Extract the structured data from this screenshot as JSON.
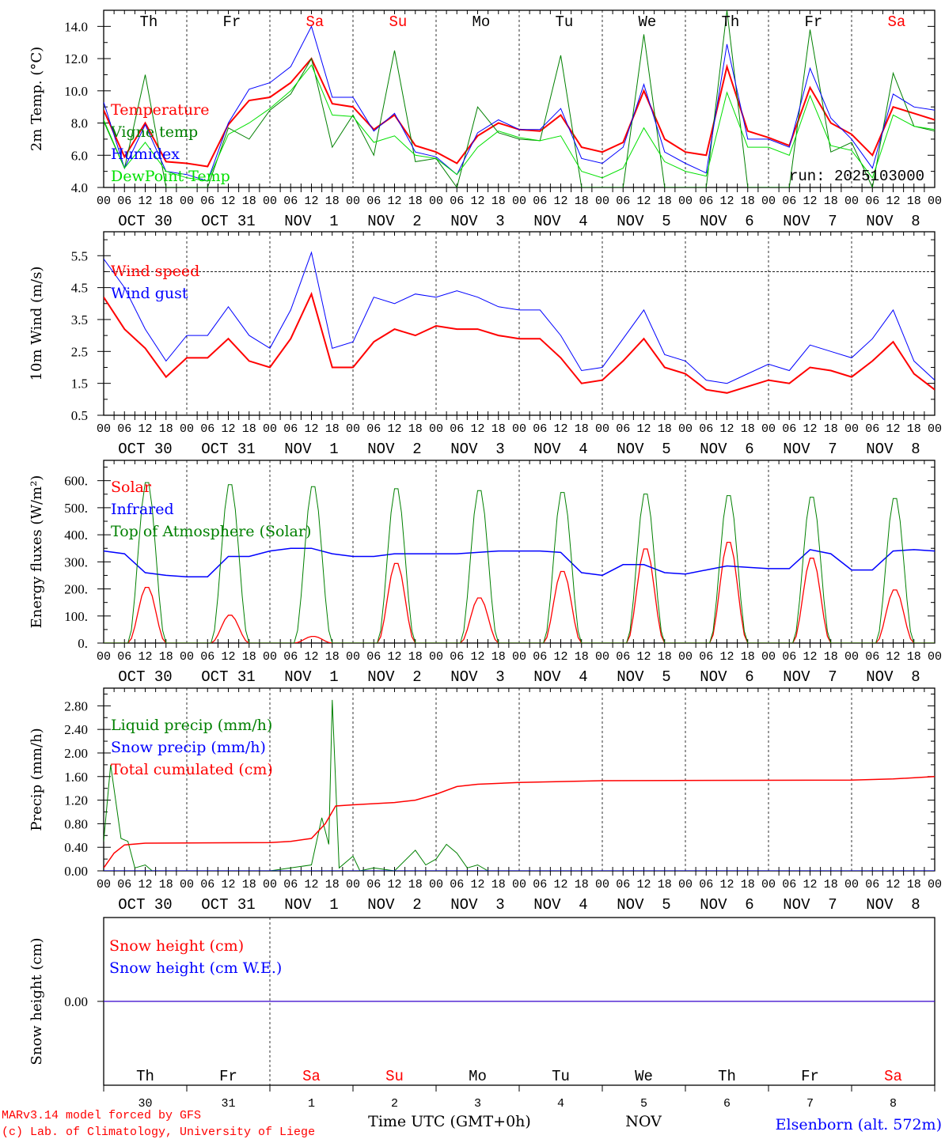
{
  "colors": {
    "red": "#ff0000",
    "blue": "#0000ff",
    "green": "#008000",
    "lightgreen": "#00e000",
    "black": "#000000"
  },
  "days": {
    "names": [
      "Th",
      "Fr",
      "Sa",
      "Su",
      "Mo",
      "Tu",
      "We",
      "Th",
      "Fr",
      "Sa"
    ],
    "weekend": [
      false,
      false,
      true,
      true,
      false,
      false,
      false,
      false,
      false,
      true
    ],
    "dates": [
      "OCT 30",
      "OCT 31",
      "NOV  1",
      "NOV  2",
      "NOV  3",
      "NOV  4",
      "NOV  5",
      "NOV  6",
      "NOV  7",
      "NOV  8"
    ],
    "numbers": [
      "30",
      "31",
      "1",
      "2",
      "3",
      "4",
      "5",
      "6",
      "7",
      "8"
    ]
  },
  "hour_labels": [
    "00",
    "06",
    "12",
    "18"
  ],
  "annotations": {
    "run": "run: 2025103000",
    "xlabel": "Time UTC (GMT+0h)",
    "month": "NOV",
    "station": "Elsenborn (alt. 572m)",
    "credit_model": "MARv3.14 model forced by GFS",
    "credit_lab": "(c) Lab. of Climatology, University of Liege"
  },
  "chart_data": [
    {
      "type": "line",
      "ylabel": "2m Temp. (°C)",
      "ylim": [
        4.0,
        15.0
      ],
      "ytick_values": [
        4,
        6,
        8,
        10,
        12,
        14
      ],
      "ytick_labels": [
        "4.0",
        "6.0",
        "8.0",
        "10.0",
        "12.0",
        "14.0"
      ],
      "minor_step": 1,
      "xlim_h": [
        0,
        240
      ],
      "series": [
        {
          "name": "Temperature",
          "color": "#ff0000",
          "width": 2,
          "step_h": 6,
          "values": [
            8.8,
            5.9,
            8.0,
            5.6,
            5.5,
            5.3,
            7.9,
            9.4,
            9.6,
            10.5,
            12.0,
            9.2,
            9.0,
            7.6,
            8.5,
            6.6,
            6.2,
            5.5,
            7.2,
            8.0,
            7.6,
            7.5,
            8.5,
            6.5,
            6.2,
            6.8,
            10.0,
            7.0,
            6.2,
            6.0,
            11.5,
            7.5,
            7.1,
            6.6,
            10.2,
            8.0,
            7.3,
            6.0,
            9.0,
            8.6,
            8.2
          ]
        },
        {
          "name": "Vigne temp",
          "color": "#008000",
          "width": 1,
          "step_h": 6,
          "values": [
            8.1,
            5.2,
            11.0,
            4.0,
            4.0,
            4.0,
            7.7,
            7.0,
            8.8,
            9.8,
            12.0,
            6.5,
            8.5,
            6.0,
            12.5,
            5.6,
            5.8,
            4.0,
            9.0,
            7.4,
            7.0,
            6.9,
            12.2,
            4.0,
            4.0,
            4.0,
            13.5,
            4.0,
            4.0,
            4.0,
            15.0,
            4.0,
            4.0,
            4.0,
            13.8,
            6.2,
            6.8,
            4.0,
            11.1,
            7.8,
            7.5
          ]
        },
        {
          "name": "Humidex",
          "color": "#0000ff",
          "width": 1,
          "step_h": 6,
          "values": [
            9.3,
            5.2,
            7.9,
            5.0,
            4.8,
            4.4,
            8.0,
            10.1,
            10.5,
            11.5,
            14.0,
            9.6,
            9.6,
            7.5,
            8.6,
            6.2,
            5.9,
            4.8,
            7.4,
            8.2,
            7.6,
            7.6,
            8.9,
            5.8,
            5.5,
            6.5,
            10.4,
            6.2,
            5.5,
            4.9,
            12.9,
            7.0,
            7.0,
            6.5,
            11.4,
            8.3,
            7.0,
            5.2,
            9.8,
            9.0,
            8.8
          ]
        },
        {
          "name": "DewPoint Temp",
          "color": "#00e000",
          "width": 1,
          "step_h": 6,
          "values": [
            8.2,
            5.2,
            6.8,
            5.0,
            4.6,
            4.4,
            7.3,
            8.0,
            8.9,
            10.0,
            11.6,
            8.5,
            8.4,
            6.8,
            7.2,
            6.0,
            5.8,
            4.8,
            6.5,
            7.5,
            7.1,
            6.9,
            7.2,
            5.0,
            4.6,
            5.2,
            7.7,
            5.6,
            5.0,
            4.7,
            9.9,
            6.5,
            6.5,
            6.0,
            9.7,
            6.6,
            6.3,
            4.6,
            8.5,
            7.8,
            7.6
          ]
        }
      ]
    },
    {
      "type": "line",
      "ylabel": "10m Wind (m/s)",
      "ylim": [
        0.5,
        6.25
      ],
      "ytick_values": [
        0.5,
        1.5,
        2.5,
        3.5,
        4.5,
        5.5
      ],
      "ytick_labels": [
        "0.5",
        "1.5",
        "2.5",
        "3.5",
        "4.5",
        "5.5"
      ],
      "minor_step": 0.5,
      "reference_line": 5.0,
      "xlim_h": [
        0,
        240
      ],
      "series": [
        {
          "name": "Wind speed",
          "color": "#ff0000",
          "width": 2,
          "step_h": 6,
          "values": [
            4.2,
            3.2,
            2.6,
            1.7,
            2.3,
            2.3,
            2.9,
            2.2,
            2.0,
            2.9,
            4.3,
            2.0,
            2.0,
            2.8,
            3.2,
            3.0,
            3.3,
            3.2,
            3.2,
            3.0,
            2.9,
            2.9,
            2.3,
            1.5,
            1.6,
            2.2,
            2.9,
            2.0,
            1.8,
            1.3,
            1.2,
            1.4,
            1.6,
            1.5,
            2.0,
            1.9,
            1.7,
            2.2,
            2.8,
            1.8,
            1.3
          ]
        },
        {
          "name": "Wind gust",
          "color": "#0000ff",
          "width": 1,
          "step_h": 6,
          "values": [
            5.4,
            4.5,
            3.2,
            2.2,
            3.0,
            3.0,
            3.9,
            3.0,
            2.6,
            3.8,
            5.6,
            2.6,
            2.8,
            4.2,
            4.0,
            4.3,
            4.2,
            4.4,
            4.2,
            3.9,
            3.8,
            3.8,
            3.0,
            1.9,
            2.0,
            2.9,
            3.8,
            2.4,
            2.2,
            1.6,
            1.5,
            1.8,
            2.1,
            1.9,
            2.7,
            2.5,
            2.3,
            2.9,
            3.8,
            2.2,
            1.6
          ]
        }
      ]
    },
    {
      "type": "line",
      "ylabel": "Energy fluxes (W/m²)",
      "ylim": [
        0,
        675
      ],
      "ytick_values": [
        0,
        100,
        200,
        300,
        400,
        500,
        600
      ],
      "ytick_labels": [
        "0.",
        "100.",
        "200.",
        "300.",
        "400.",
        "500.",
        "600."
      ],
      "minor_step": 50,
      "xlim_h": [
        0,
        240
      ],
      "series": [
        {
          "name": "Solar",
          "color": "#ff0000",
          "width": 1.3,
          "daily_peak": [
            210,
            105,
            25,
            300,
            170,
            270,
            355,
            380,
            320,
            200
          ]
        },
        {
          "name": "Infrared",
          "color": "#0000ff",
          "width": 1.5,
          "step_h": 6,
          "values": [
            340,
            330,
            260,
            250,
            245,
            245,
            320,
            320,
            340,
            350,
            350,
            330,
            320,
            320,
            330,
            330,
            330,
            330,
            335,
            340,
            340,
            340,
            335,
            260,
            250,
            290,
            290,
            260,
            255,
            270,
            285,
            280,
            275,
            275,
            345,
            330,
            270,
            270,
            340,
            345,
            340
          ]
        },
        {
          "name": "Top of Atmosphere (Solar)",
          "color": "#008000",
          "width": 1,
          "daily_peak": [
            605,
            597,
            590,
            582,
            575,
            568,
            562,
            556,
            550,
            545
          ]
        }
      ]
    },
    {
      "type": "line",
      "ylabel": "Precip (mm/h)",
      "ylim": [
        0,
        3.1
      ],
      "ytick_values": [
        0,
        0.4,
        0.8,
        1.2,
        1.6,
        2.0,
        2.4,
        2.8
      ],
      "ytick_labels": [
        "0.00",
        "0.40",
        "0.80",
        "1.20",
        "1.60",
        "2.00",
        "2.40",
        "2.80"
      ],
      "minor_step": 0.2,
      "xlim_h": [
        0,
        240
      ],
      "series": [
        {
          "name": "Liquid precip (mm/h)",
          "color": "#008000",
          "width": 1,
          "points_h": [
            [
              0,
              0.5
            ],
            [
              2,
              1.8
            ],
            [
              5,
              0.55
            ],
            [
              7,
              0.5
            ],
            [
              9,
              0.05
            ],
            [
              12,
              0.1
            ],
            [
              14,
              0
            ],
            [
              48,
              0
            ],
            [
              54,
              0.05
            ],
            [
              60,
              0.1
            ],
            [
              63,
              0.9
            ],
            [
              65,
              0.45
            ],
            [
              66,
              2.9
            ],
            [
              68,
              0.05
            ],
            [
              72,
              0.25
            ],
            [
              74,
              0
            ],
            [
              78,
              0.05
            ],
            [
              84,
              0
            ],
            [
              90,
              0.35
            ],
            [
              93,
              0.1
            ],
            [
              96,
              0.2
            ],
            [
              99,
              0.45
            ],
            [
              102,
              0.3
            ],
            [
              105,
              0.05
            ],
            [
              108,
              0.1
            ],
            [
              111,
              0
            ],
            [
              240,
              0
            ]
          ]
        },
        {
          "name": "Snow precip (mm/h)",
          "color": "#0000ff",
          "width": 1,
          "step_h": 24,
          "values": [
            0,
            0,
            0,
            0,
            0,
            0,
            0,
            0,
            0,
            0,
            0
          ]
        },
        {
          "name": "Total cumulated (cm)",
          "color": "#ff0000",
          "width": 1.5,
          "points_h": [
            [
              0,
              0.05
            ],
            [
              3,
              0.3
            ],
            [
              6,
              0.44
            ],
            [
              12,
              0.47
            ],
            [
              48,
              0.48
            ],
            [
              54,
              0.5
            ],
            [
              60,
              0.55
            ],
            [
              64,
              0.8
            ],
            [
              67,
              1.1
            ],
            [
              72,
              1.12
            ],
            [
              84,
              1.16
            ],
            [
              90,
              1.2
            ],
            [
              96,
              1.3
            ],
            [
              102,
              1.43
            ],
            [
              108,
              1.47
            ],
            [
              120,
              1.5
            ],
            [
              144,
              1.53
            ],
            [
              216,
              1.54
            ],
            [
              228,
              1.56
            ],
            [
              240,
              1.6
            ]
          ]
        }
      ]
    },
    {
      "type": "line",
      "ylabel": "Snow height (cm)",
      "ylim": [
        -1,
        1
      ],
      "ytick_values": [
        0
      ],
      "ytick_labels": [
        "0.00"
      ],
      "xlim_h": [
        0,
        240
      ],
      "series": [
        {
          "name": "Snow height (cm)",
          "color": "#ff0000",
          "width": 1.3,
          "step_h": 240,
          "values": [
            0,
            0
          ]
        },
        {
          "name": "Snow height (cm W.E.)",
          "color": "#0000ff",
          "width": 1,
          "step_h": 240,
          "values": [
            0,
            0
          ]
        }
      ]
    }
  ]
}
